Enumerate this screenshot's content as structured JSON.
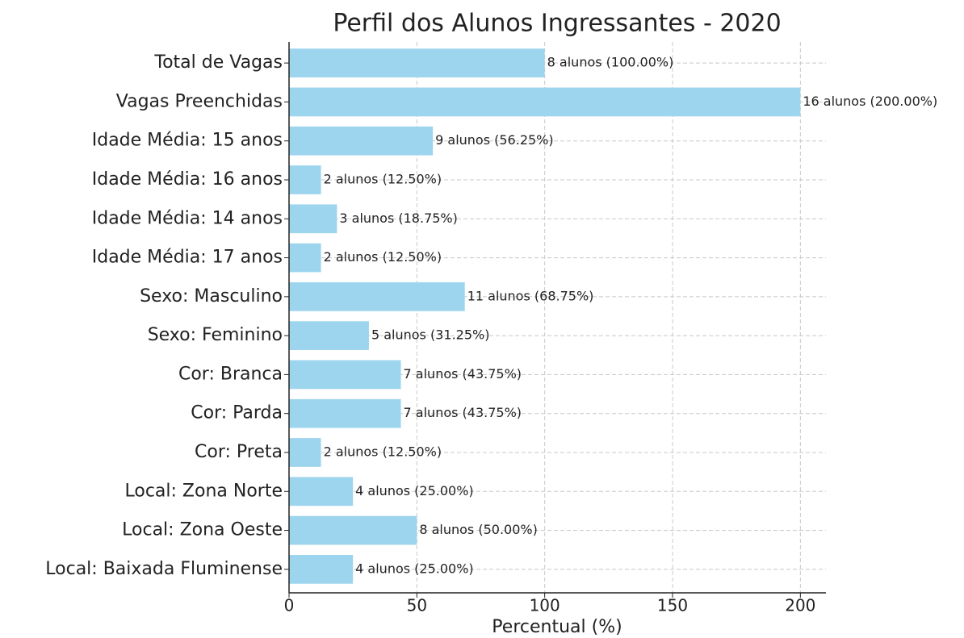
{
  "chart_data": {
    "type": "barh",
    "title": "Perfil dos Alunos Ingressantes - 2020",
    "xlabel": "Percentual (%)",
    "categories": [
      "Total de Vagas",
      "Vagas Preenchidas",
      "Idade Média: 15 anos",
      "Idade Média: 16 anos",
      "Idade Média: 14 anos",
      "Idade Média: 17 anos",
      "Sexo: Masculino",
      "Sexo: Feminino",
      "Cor: Branca",
      "Cor: Parda",
      "Cor: Preta",
      "Local: Zona Norte",
      "Local: Zona Oeste",
      "Local: Baixada Fluminense"
    ],
    "values": [
      100,
      200,
      56.25,
      12.5,
      18.75,
      12.5,
      68.75,
      31.25,
      43.75,
      43.75,
      12.5,
      25,
      50,
      25
    ],
    "value_labels": [
      "8 alunos (100.00%)",
      "16 alunos (200.00%)",
      "9 alunos (56.25%)",
      "2 alunos (12.50%)",
      "3 alunos (18.75%)",
      "2 alunos (12.50%)",
      "11 alunos (68.75%)",
      "5 alunos (31.25%)",
      "7 alunos (43.75%)",
      "7 alunos (43.75%)",
      "2 alunos (12.50%)",
      "4 alunos (25.00%)",
      "8 alunos (50.00%)",
      "4 alunos (25.00%)"
    ],
    "color": "#9dd5ee",
    "xlim": [
      0,
      210
    ],
    "xticks": [
      0,
      50,
      100,
      150,
      200
    ],
    "grid": true
  }
}
